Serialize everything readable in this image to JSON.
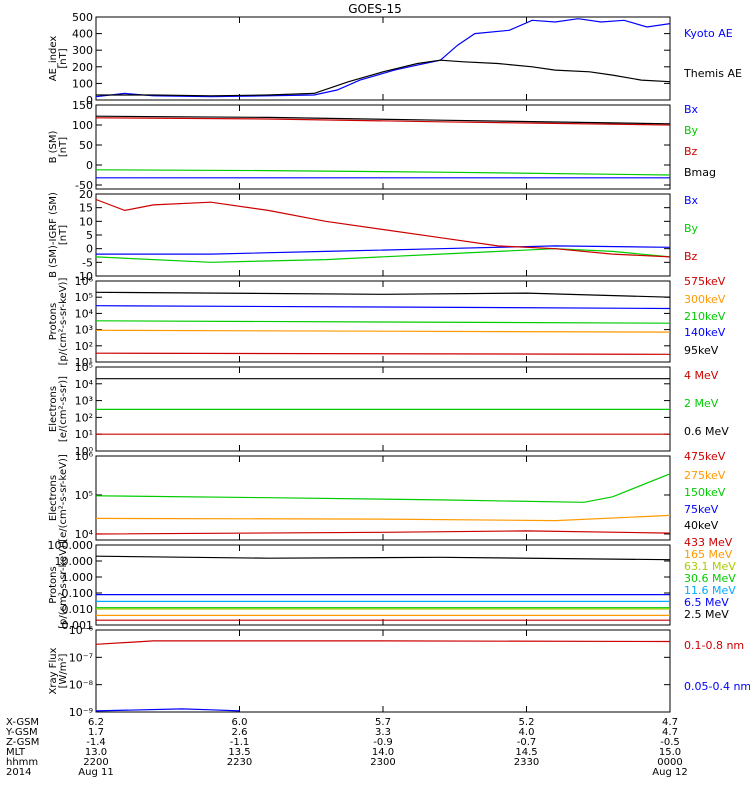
{
  "title": "GOES-15",
  "colors": {
    "black": "#000000",
    "blue": "#0000ff",
    "green": "#00cc00",
    "red": "#cc0000",
    "orange": "#ff9900",
    "cyan": "#00aaff",
    "yellowgreen": "#aacc00",
    "magenta": "#cc00cc"
  },
  "chart_data": [
    {
      "type": "line",
      "ylabel": [
        "AE_index",
        "[nT]"
      ],
      "scale": "linear",
      "ylim": [
        0,
        500
      ],
      "yticks": [
        0,
        100,
        200,
        300,
        400,
        500
      ],
      "yticklabels": [
        "0",
        "100",
        "200",
        "300",
        "400",
        "500"
      ],
      "series": [
        {
          "name": "Kyoto AE",
          "color": "#0000ff",
          "x": [
            0,
            0.05,
            0.1,
            0.2,
            0.3,
            0.38,
            0.42,
            0.46,
            0.52,
            0.56,
            0.6,
            0.63,
            0.66,
            0.72,
            0.76,
            0.8,
            0.84,
            0.88,
            0.92,
            0.96,
            1.0
          ],
          "y": [
            20,
            40,
            25,
            20,
            25,
            30,
            60,
            120,
            180,
            210,
            240,
            330,
            400,
            420,
            480,
            470,
            490,
            470,
            480,
            440,
            460
          ]
        },
        {
          "name": "Themis AE",
          "color": "#000000",
          "x": [
            0,
            0.1,
            0.2,
            0.3,
            0.38,
            0.44,
            0.5,
            0.56,
            0.6,
            0.64,
            0.7,
            0.76,
            0.8,
            0.86,
            0.9,
            0.95,
            1.0
          ],
          "y": [
            30,
            30,
            25,
            30,
            40,
            110,
            170,
            220,
            240,
            230,
            220,
            200,
            180,
            170,
            150,
            120,
            110
          ]
        }
      ]
    },
    {
      "type": "line",
      "ylabel": [
        "B (SM)",
        "[nT]"
      ],
      "scale": "linear",
      "ylim": [
        -60,
        150
      ],
      "yticks": [
        -50,
        0,
        50,
        100,
        150
      ],
      "yticklabels": [
        "-50",
        "0",
        "50",
        "100",
        "150"
      ],
      "series": [
        {
          "name": "Bx",
          "color": "#0000ff",
          "x": [
            0,
            1
          ],
          "y": [
            -32,
            -32
          ]
        },
        {
          "name": "By",
          "color": "#00cc00",
          "x": [
            0,
            0.3,
            0.6,
            1.0
          ],
          "y": [
            -12,
            -14,
            -18,
            -25
          ]
        },
        {
          "name": "Bz",
          "color": "#cc0000",
          "x": [
            0,
            0.3,
            0.6,
            1.0
          ],
          "y": [
            118,
            115,
            108,
            100
          ]
        },
        {
          "name": "Bmag",
          "color": "#000000",
          "x": [
            0,
            0.3,
            0.6,
            1.0
          ],
          "y": [
            122,
            119,
            112,
            103
          ]
        }
      ]
    },
    {
      "type": "line",
      "ylabel": [
        "B (SM)-IGRF (SM)",
        "[nT]"
      ],
      "scale": "linear",
      "ylim": [
        -10,
        20
      ],
      "yticks": [
        -10,
        -5,
        0,
        5,
        10,
        15,
        20
      ],
      "yticklabels": [
        "-10",
        "-5",
        "0",
        "5",
        "10",
        "15",
        "20"
      ],
      "series": [
        {
          "name": "Bx",
          "color": "#0000ff",
          "x": [
            0,
            0.2,
            0.4,
            0.6,
            0.8,
            1.0
          ],
          "y": [
            -2,
            -2,
            -1,
            0,
            1,
            0.5
          ]
        },
        {
          "name": "By",
          "color": "#00cc00",
          "x": [
            0,
            0.2,
            0.4,
            0.6,
            0.8,
            0.9,
            1.0
          ],
          "y": [
            -3,
            -5,
            -4,
            -2,
            0,
            -1,
            -3
          ]
        },
        {
          "name": "Bz",
          "color": "#cc0000",
          "x": [
            0,
            0.05,
            0.1,
            0.2,
            0.3,
            0.4,
            0.5,
            0.6,
            0.7,
            0.8,
            0.9,
            1.0
          ],
          "y": [
            18,
            14,
            16,
            17,
            14,
            10,
            7,
            4,
            1,
            0,
            -2,
            -3
          ]
        }
      ]
    },
    {
      "type": "line",
      "ylabel": [
        "Protons",
        "[p/(cm²-s-sr-keV)]"
      ],
      "scale": "log",
      "ylim": [
        10,
        1000000
      ],
      "yticks": [
        10,
        100,
        1000,
        10000,
        100000,
        1000000
      ],
      "yticklabels": [
        "10¹",
        "10²",
        "10³",
        "10⁴",
        "10⁵",
        "10⁶"
      ],
      "series": [
        {
          "name": "575keV",
          "color": "#cc0000",
          "x": [
            0,
            1
          ],
          "y": [
            35,
            30
          ]
        },
        {
          "name": "300keV",
          "color": "#ff9900",
          "x": [
            0,
            1
          ],
          "y": [
            900,
            700
          ]
        },
        {
          "name": "210keV",
          "color": "#00cc00",
          "x": [
            0,
            1
          ],
          "y": [
            3500,
            2500
          ]
        },
        {
          "name": "140keV",
          "color": "#0000ff",
          "x": [
            0,
            0.5,
            1
          ],
          "y": [
            30000,
            25000,
            20000
          ]
        },
        {
          "name": "95keV",
          "color": "#000000",
          "x": [
            0,
            0.5,
            0.75,
            1
          ],
          "y": [
            200000,
            150000,
            180000,
            100000
          ]
        }
      ]
    },
    {
      "type": "line",
      "ylabel": [
        "Electrons",
        "[e/(cm²-s-sr)]"
      ],
      "scale": "log",
      "ylim": [
        1,
        100000
      ],
      "yticks": [
        1,
        10,
        100,
        1000,
        10000,
        100000
      ],
      "yticklabels": [
        "10⁰",
        "10¹",
        "10²",
        "10³",
        "10⁴",
        "10⁵"
      ],
      "series": [
        {
          "name": "4 MeV",
          "color": "#cc0000",
          "x": [
            0,
            1
          ],
          "y": [
            10,
            10
          ]
        },
        {
          "name": "2 MeV",
          "color": "#00cc00",
          "x": [
            0,
            1
          ],
          "y": [
            300,
            300
          ]
        },
        {
          "name": "0.6 MeV",
          "color": "#000000",
          "x": [
            0,
            1
          ],
          "y": [
            20000,
            20000
          ]
        }
      ]
    },
    {
      "type": "line",
      "ylabel": [
        "Electrons",
        "[e/(cm²-s-sr-keV)]"
      ],
      "scale": "log",
      "ylim": [
        7000,
        1000000
      ],
      "yticks": [
        10000,
        100000,
        1000000
      ],
      "yticklabels": [
        "10⁴",
        "10⁵",
        "10⁶"
      ],
      "series": [
        {
          "name": "475keV",
          "color": "#cc0000",
          "x": [
            0,
            0.5,
            0.75,
            1
          ],
          "y": [
            10000,
            11000,
            12000,
            10500
          ]
        },
        {
          "name": "275keV",
          "color": "#ff9900",
          "x": [
            0,
            0.5,
            0.8,
            1
          ],
          "y": [
            25000,
            24000,
            22000,
            30000
          ]
        },
        {
          "name": "150keV",
          "color": "#00cc00",
          "x": [
            0,
            0.3,
            0.6,
            0.85,
            0.9,
            1
          ],
          "y": [
            95000,
            85000,
            75000,
            65000,
            90000,
            350000
          ]
        },
        {
          "name": "75keV",
          "color": "#0000ff",
          "x": [],
          "y": []
        },
        {
          "name": "40keV",
          "color": "#000000",
          "x": [],
          "y": []
        }
      ]
    },
    {
      "type": "line",
      "ylabel": [
        "Protons",
        "[p/(cm²-s-sr-keV)]"
      ],
      "scale": "log",
      "ylim": [
        0.001,
        100
      ],
      "yticks": [
        0.001,
        0.01,
        0.1,
        1,
        10,
        100
      ],
      "yticklabels": [
        "0.001",
        "0.010",
        "0.100",
        "1.000",
        "10.000",
        "100.000"
      ],
      "series": [
        {
          "name": "433 MeV",
          "color": "#cc0000",
          "x": [
            0,
            1
          ],
          "y": [
            0.002,
            0.002
          ]
        },
        {
          "name": "165 MeV",
          "color": "#ff9900",
          "x": [
            0,
            1
          ],
          "y": [
            0.004,
            0.004
          ]
        },
        {
          "name": "63.1 MeV",
          "color": "#aacc00",
          "x": [
            0,
            1
          ],
          "y": [
            0.01,
            0.01
          ]
        },
        {
          "name": "30.6 MeV",
          "color": "#00cc00",
          "x": [
            0,
            1
          ],
          "y": [
            0.012,
            0.012
          ]
        },
        {
          "name": "11.6 MeV",
          "color": "#00aaff",
          "x": [
            0,
            1
          ],
          "y": [
            0.03,
            0.03
          ]
        },
        {
          "name": "6.5 MeV",
          "color": "#0000ff",
          "x": [
            0,
            1
          ],
          "y": [
            0.08,
            0.08
          ]
        },
        {
          "name": "2.5 MeV",
          "color": "#000000",
          "x": [
            0,
            0.3,
            0.6,
            1
          ],
          "y": [
            20,
            15,
            17,
            12
          ]
        }
      ]
    },
    {
      "type": "line",
      "ylabel": [
        "Xray Flux",
        "[W/m²]"
      ],
      "scale": "log",
      "ylim": [
        1e-09,
        1e-06
      ],
      "yticks": [
        1e-09,
        1e-08,
        1e-07,
        1e-06
      ],
      "yticklabels": [
        "10⁻⁹",
        "10⁻⁸",
        "10⁻⁷",
        "10⁻⁶"
      ],
      "series": [
        {
          "name": "0.1-0.8 nm",
          "color": "#cc0000",
          "x": [
            0,
            0.1,
            0.5,
            1
          ],
          "y": [
            3e-07,
            4e-07,
            4e-07,
            3.8e-07
          ]
        },
        {
          "name": "0.05-0.4 nm",
          "color": "#0000ff",
          "x": [
            0,
            0.15,
            0.2,
            0.25
          ],
          "y": [
            1.1e-09,
            1.3e-09,
            1.2e-09,
            1.1e-09
          ]
        }
      ]
    }
  ],
  "xaxis": {
    "ticks": [
      {
        "x": 0.0,
        "xgsm": "6.2",
        "ygsm": "1.7",
        "zgsm": "-1.4",
        "mlt": "13.0",
        "hhmm": "2200",
        "date": "Aug 11"
      },
      {
        "x": 0.25,
        "xgsm": "6.0",
        "ygsm": "2.6",
        "zgsm": "-1.1",
        "mlt": "13.5",
        "hhmm": "2230",
        "date": ""
      },
      {
        "x": 0.5,
        "xgsm": "5.7",
        "ygsm": "3.3",
        "zgsm": "-0.9",
        "mlt": "14.0",
        "hhmm": "2300",
        "date": ""
      },
      {
        "x": 0.75,
        "xgsm": "5.2",
        "ygsm": "4.0",
        "zgsm": "-0.7",
        "mlt": "14.5",
        "hhmm": "2330",
        "date": ""
      },
      {
        "x": 1.0,
        "xgsm": "4.7",
        "ygsm": "4.7",
        "zgsm": "-0.5",
        "mlt": "15.0",
        "hhmm": "0000",
        "date": "Aug 12"
      }
    ],
    "row_labels": [
      "X-GSM",
      "Y-GSM",
      "Z-GSM",
      "MLT",
      "hhmm",
      "2014"
    ]
  }
}
